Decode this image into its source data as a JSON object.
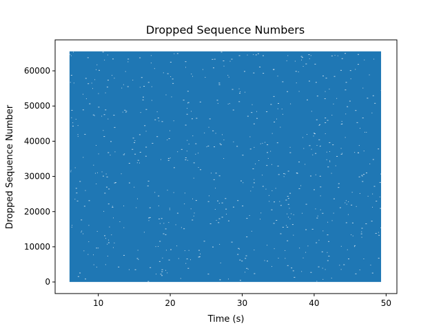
{
  "chart_data": {
    "type": "scatter",
    "title": "Dropped Sequence Numbers",
    "xlabel": "Time (s)",
    "ylabel": "Dropped Sequence Number",
    "xlim": [
      4,
      51.5
    ],
    "ylim": [
      -3300,
      68800
    ],
    "x_ticks": [
      10,
      20,
      30,
      40,
      50
    ],
    "y_ticks": [
      0,
      10000,
      20000,
      30000,
      40000,
      50000,
      60000
    ],
    "series": [
      {
        "color": "#1f77b4",
        "x_range": [
          6.0,
          49.3
        ],
        "y_range": [
          0,
          65535
        ],
        "marker": "dense-dashes"
      }
    ],
    "grid": false,
    "legend": "none"
  }
}
